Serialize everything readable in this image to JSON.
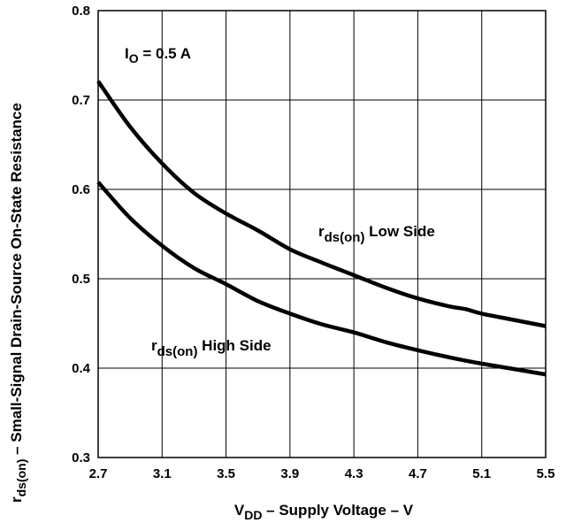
{
  "chart_data": {
    "type": "line",
    "xlabel": {
      "main": "V",
      "sub": "DD",
      "rest": " – Supply Voltage – V"
    },
    "ylabel": {
      "main": "r",
      "sub": "ds(on)",
      "rest": " – Small-Signal Drain-Source On-State Resistance"
    },
    "xlim": [
      2.7,
      5.5
    ],
    "ylim": [
      0.3,
      0.8
    ],
    "x_ticks": [
      2.7,
      3.1,
      3.5,
      3.9,
      4.3,
      4.7,
      5.1,
      5.5
    ],
    "x_tick_labels": [
      "2.7",
      "3.1",
      "3.5",
      "3.9",
      "4.3",
      "4.7",
      "5.1",
      "5.5"
    ],
    "y_ticks": [
      0.3,
      0.4,
      0.5,
      0.6,
      0.7,
      0.8
    ],
    "y_tick_labels": [
      "0.3",
      "0.4",
      "0.5",
      "0.6",
      "0.7",
      "0.8"
    ],
    "grid": true,
    "annotation": {
      "main": "I",
      "sub": "O",
      "rest": " = 0.5 A"
    },
    "series": [
      {
        "name": "Low Side",
        "label_main": "r",
        "label_sub": "ds(on)",
        "label_rest": " Low Side",
        "x": [
          2.7,
          2.9,
          3.1,
          3.3,
          3.5,
          3.7,
          3.9,
          4.1,
          4.3,
          4.5,
          4.7,
          4.9,
          5.0,
          5.1,
          5.3,
          5.5
        ],
        "y": [
          0.721,
          0.67,
          0.629,
          0.596,
          0.573,
          0.554,
          0.533,
          0.518,
          0.504,
          0.49,
          0.478,
          0.469,
          0.466,
          0.461,
          0.454,
          0.447
        ]
      },
      {
        "name": "High Side",
        "label_main": "r",
        "label_sub": "ds(on)",
        "label_rest": " High Side",
        "x": [
          2.7,
          2.9,
          3.1,
          3.3,
          3.5,
          3.7,
          3.9,
          4.1,
          4.3,
          4.5,
          4.7,
          4.9,
          5.1,
          5.3,
          5.5
        ],
        "y": [
          0.608,
          0.568,
          0.537,
          0.512,
          0.494,
          0.475,
          0.461,
          0.449,
          0.44,
          0.429,
          0.42,
          0.412,
          0.405,
          0.399,
          0.393
        ]
      }
    ]
  }
}
